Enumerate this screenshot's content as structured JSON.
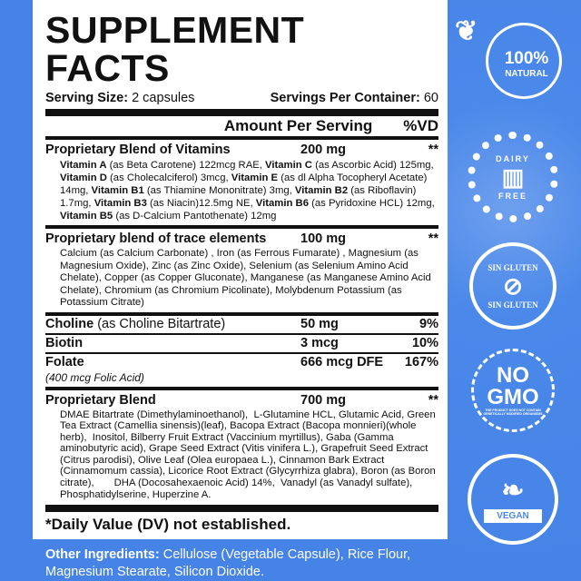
{
  "title": "SUPPLEMENT FACTS",
  "serving_size_label": "Serving Size:",
  "serving_size": "2 capsules",
  "servings_label": "Servings Per Container:",
  "servings": "60",
  "amount_header": "Amount Per Serving",
  "dv_header": "%VD",
  "vitamins": {
    "name": "Proprietary Blend of Vitamins",
    "amount": "200 mg",
    "dv": "**",
    "items": [
      [
        "Vitamin A",
        " (as Beta Carotene) 122mcg RAE,  "
      ],
      [
        "Vitamin C",
        " (as Ascorbic Acid) 125mg,  "
      ],
      [
        "Vitamin D",
        " (as Cholecalciferol) 3mcg,  "
      ],
      [
        "Vitamin E",
        " (as dl Alpha Tocopheryl Acetate) 14mg,  "
      ],
      [
        "Vitamin B1",
        " (as Thiamine Mononitrate) 3mg, "
      ],
      [
        "Vitamin B2",
        " (as Riboflavin) 1.7mg,  "
      ],
      [
        "Vitamin B3",
        " (as Niacin)12.5mg NE, "
      ],
      [
        "Vitamin B6",
        " (as Pyridoxine HCL) 12mg,  "
      ],
      [
        "Vitamin B5",
        " (as D-Calcium Pantothenate) 12mg"
      ]
    ]
  },
  "trace": {
    "name": "Proprietary blend of trace elements",
    "amount": "100 mg",
    "dv": "**",
    "text": "Calcium (as Calcium Carbonate) , Iron (as Ferrous Fumarate) , Magnesium (as Magnesium Oxide), Zinc (as Zinc Oxide), Selenium (as Selenium Amino Acid Chelate), Copper (as Copper Gluconate), Manganese (as Manganese Amino Acid Chelate), Chromium (as Chromium Picolinate), Molybdenum Potassium (as Potassium Citrate)"
  },
  "choline": {
    "name": "Choline",
    "detail": " (as Choline Bitartrate)",
    "amount": "50 mg",
    "dv": "9%"
  },
  "biotin": {
    "name": "Biotin",
    "amount": "3 mcg",
    "dv": "10%"
  },
  "folate": {
    "name": "Folate",
    "note": "(400 mcg Folic Acid)",
    "amount": "666 mcg DFE",
    "dv": "167%"
  },
  "blend": {
    "name": "Proprietary Blend",
    "amount": "700 mg",
    "dv": "**",
    "text": "DMAE Bitartrate (Dimethylaminoethanol),  L-Glutamine HCL, Glutamic Acid, Green Tea Extract (Camellia sinensis)(leaf), Bacopa Extract (Bacopa monnieri)(whole herb),  Inositol, Bilberry Fruit Extract (Vaccinium myrtillus), Gaba (Gamma aminobutyric acid), Grape Seed Extract (Vitis vinifera L.), Grapefruit Seed Extract (Citrus parodisi), Olive Leaf (Olea europaea L.), Cinnamon Bark Extract (Cinnamomum cassia), Licorice Root Extract (Glycyrrhiza glabra), Boron (as Boron citrate),       DHA (Docosahexaenoic Acid) 14%,  Vanadyl (as Vanadyl sulfate), Phosphatidylserine, Huperzine A."
  },
  "daily_value_note": "*Daily Value (DV) not established.",
  "other_label": "Other Ingredients:",
  "other_text": " Cellulose (Vegetable Capsule), Rice Flour, Magnesium Stearate, Silicon Dioxide.",
  "badges": {
    "natural": [
      "100%",
      "NATURAL"
    ],
    "dairy": [
      "DAIRY",
      "FREE"
    ],
    "gluten": [
      "SIN GLUTEN",
      "SIN GLUTEN"
    ],
    "gmo": [
      "NO",
      "GMO",
      "THE PRODUCT DOES NOT CONTAIN GENETICALLY MODIFIED ORGANISMS"
    ],
    "vegan": "VEGAN"
  },
  "colors": {
    "background": "#4a88ea",
    "panel": "#ffffff",
    "text": "#111111"
  }
}
